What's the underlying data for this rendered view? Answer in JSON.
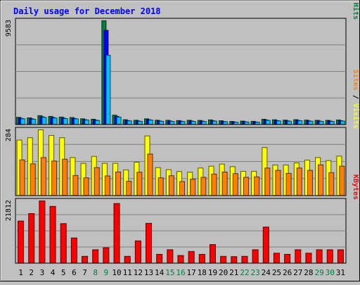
{
  "chart_data": [
    {
      "type": "bar",
      "title": "Daily usage for December 2018",
      "categories": [
        "1",
        "2",
        "3",
        "4",
        "5",
        "6",
        "7",
        "8",
        "9",
        "10",
        "11",
        "12",
        "13",
        "14",
        "15",
        "16",
        "17",
        "18",
        "19",
        "20",
        "21",
        "22",
        "23",
        "24",
        "25",
        "26",
        "27",
        "28",
        "29",
        "30",
        "31"
      ],
      "weekend_days": [
        "8",
        "9",
        "15",
        "16",
        "22",
        "23",
        "29",
        "30"
      ],
      "y_axis_label": "9583",
      "ylim": [
        0,
        9583
      ],
      "series": [
        {
          "name": "Hits",
          "color": "#008040",
          "values": [
            700,
            650,
            850,
            780,
            720,
            680,
            560,
            520,
            9583,
            900,
            480,
            430,
            560,
            430,
            420,
            400,
            420,
            410,
            460,
            380,
            320,
            350,
            330,
            520,
            470,
            440,
            480,
            440,
            420,
            420,
            450
          ]
        },
        {
          "name": "Files",
          "color": "#0000ff",
          "values": [
            600,
            560,
            740,
            680,
            620,
            590,
            480,
            440,
            8700,
            780,
            400,
            360,
            480,
            360,
            350,
            340,
            350,
            340,
            380,
            310,
            270,
            290,
            270,
            450,
            400,
            370,
            410,
            370,
            350,
            350,
            380
          ]
        },
        {
          "name": "Pages",
          "color": "#00c0ff",
          "values": [
            560,
            520,
            690,
            630,
            580,
            550,
            450,
            410,
            6400,
            720,
            370,
            330,
            440,
            330,
            320,
            310,
            320,
            310,
            350,
            290,
            250,
            270,
            250,
            420,
            370,
            340,
            380,
            340,
            320,
            320,
            350
          ]
        }
      ],
      "legend": {
        "position": "right",
        "text": "Pages / Files / Hits",
        "separator": " / "
      }
    },
    {
      "type": "bar",
      "categories": [
        "1",
        "2",
        "3",
        "4",
        "5",
        "6",
        "7",
        "8",
        "9",
        "10",
        "11",
        "12",
        "13",
        "14",
        "15",
        "16",
        "17",
        "18",
        "19",
        "20",
        "21",
        "22",
        "23",
        "24",
        "25",
        "26",
        "27",
        "28",
        "29",
        "30",
        "31"
      ],
      "y_axis_label": "284",
      "ylim": [
        0,
        284
      ],
      "series": [
        {
          "name": "Visits",
          "color": "#ffff00",
          "values": [
            240,
            250,
            284,
            260,
            250,
            165,
            140,
            170,
            140,
            140,
            112,
            145,
            258,
            122,
            113,
            105,
            102,
            120,
            128,
            137,
            126,
            106,
            106,
            208,
            133,
            133,
            142,
            154,
            165,
            152,
            171
          ]
        },
        {
          "name": "Sites",
          "color": "#ff8000",
          "values": [
            155,
            138,
            165,
            150,
            158,
            88,
            78,
            122,
            86,
            103,
            63,
            102,
            180,
            78,
            87,
            62,
            72,
            80,
            94,
            103,
            96,
            80,
            82,
            120,
            110,
            97,
            120,
            110,
            134,
            100,
            128
          ]
        }
      ],
      "legend": {
        "position": "right",
        "text": "Sites / Visits",
        "separator": " / "
      }
    },
    {
      "type": "bar",
      "categories": [
        "1",
        "2",
        "3",
        "4",
        "5",
        "6",
        "7",
        "8",
        "9",
        "10",
        "11",
        "12",
        "13",
        "14",
        "15",
        "16",
        "17",
        "18",
        "19",
        "20",
        "21",
        "22",
        "23",
        "24",
        "25",
        "26",
        "27",
        "28",
        "29",
        "30",
        "31"
      ],
      "y_axis_label": "21812",
      "ylim": [
        0,
        21812
      ],
      "series": [
        {
          "name": "KBytes",
          "color": "#ff0000",
          "values": [
            14800,
            17400,
            21812,
            19900,
            13900,
            8900,
            2500,
            4800,
            5500,
            20900,
            2500,
            7900,
            14000,
            3200,
            4800,
            2800,
            4200,
            3200,
            6600,
            2500,
            2400,
            2500,
            4800,
            12700,
            3600,
            3200,
            4800,
            3600,
            4800,
            4800,
            4800
          ]
        }
      ],
      "legend": {
        "position": "right",
        "text": "KBytes",
        "separator": ""
      }
    }
  ]
}
